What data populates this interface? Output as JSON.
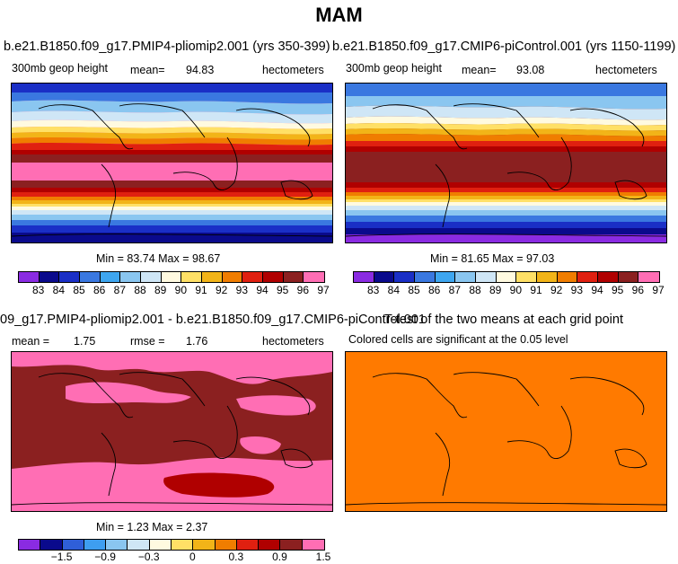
{
  "page": {
    "title": "MAM"
  },
  "panels": {
    "p1": {
      "run": "b.e21.B1850.f09_g17.PMIP4-pliomip2.001 (yrs 350-399)",
      "field": "300mb geop height",
      "mean_label": "mean=",
      "mean": "94.83",
      "units": "hectometers",
      "minmax": "Min =  83.74 Max =   98.67",
      "colorbar": [
        "83",
        "84",
        "85",
        "86",
        "87",
        "88",
        "89",
        "90",
        "91",
        "92",
        "93",
        "94",
        "95",
        "96",
        "97"
      ]
    },
    "p2": {
      "run": "b.e21.B1850.f09_g17.CMIP6-piControl.001 (yrs 1150-1199)",
      "field": "300mb geop height",
      "mean_label": "mean=",
      "mean": "93.08",
      "units": "hectometers",
      "minmax": "Min =  81.65 Max =   97.03",
      "colorbar": [
        "83",
        "84",
        "85",
        "86",
        "87",
        "88",
        "89",
        "90",
        "91",
        "92",
        "93",
        "94",
        "95",
        "96",
        "97"
      ]
    },
    "p3": {
      "run": "09_g17.PMIP4-pliomip2.001 - b.e21.B1850.f09_g17.CMIP6-piControl.001",
      "mean_label": "mean =",
      "mean": "1.75",
      "rmse_label": "rmse =",
      "rmse": "1.76",
      "units": "hectometers",
      "minmax": "Min =   1.23 Max =   2.37",
      "colorbar": [
        "−1.5",
        "−0.9",
        "−0.3",
        "0",
        "0.3",
        "0.9",
        "1.5"
      ]
    },
    "p4": {
      "title": "T-test of the two means at each grid point",
      "subtitle": "Colored cells are significant at the 0.05 level"
    }
  },
  "colors": {
    "abs_scale": [
      "#8a2be2",
      "#0a0a8c",
      "#1a2fc6",
      "#3a78e0",
      "#3ea6f0",
      "#8ac6f0",
      "#cfe6f6",
      "#fffae0",
      "#ffe066",
      "#f2b418",
      "#f07d00",
      "#e02010",
      "#b00000",
      "#8b2020",
      "#ff6eb4"
    ],
    "diff_scale": [
      "#8a2be2",
      "#0a0a8c",
      "#2f5fd8",
      "#3e9ef0",
      "#8ac6f0",
      "#cfe6f6",
      "#fffae0",
      "#ffe066",
      "#f2b418",
      "#f07d00",
      "#e02010",
      "#b00000",
      "#8b2020",
      "#ff6eb4"
    ],
    "ttest_fill": "#ff7a00"
  }
}
